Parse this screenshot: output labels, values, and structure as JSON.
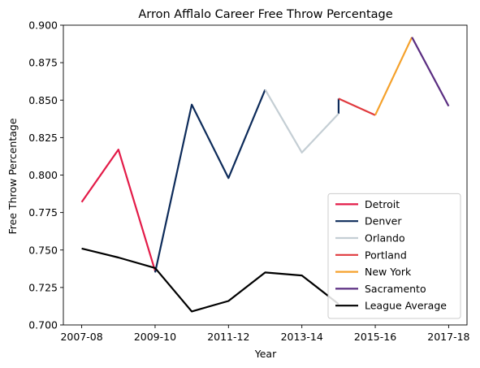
{
  "chart_data": {
    "type": "line",
    "title": "Arron Afflalo Career Free Throw Percentage",
    "xlabel": "Year",
    "ylabel": "Free Throw Percentage",
    "x": [
      "2007-08",
      "2008-09",
      "2009-10",
      "2010-11",
      "2011-12",
      "2012-13",
      "2013-14",
      "2014-15",
      "2015-16",
      "2016-17",
      "2017-18"
    ],
    "x_tick_labels": [
      "2007-08",
      "2009-10",
      "2011-12",
      "2013-14",
      "2015-16",
      "2017-18"
    ],
    "x_tick_indices": [
      0,
      2,
      4,
      6,
      8,
      10
    ],
    "ylim": [
      0.7,
      0.9
    ],
    "y_ticks": [
      0.7,
      0.725,
      0.75,
      0.775,
      0.8,
      0.825,
      0.85,
      0.875,
      0.9
    ],
    "y_tick_labels": [
      "0.700",
      "0.725",
      "0.750",
      "0.775",
      "0.800",
      "0.825",
      "0.850",
      "0.875",
      "0.900"
    ],
    "legend_position": "lower-right",
    "series": [
      {
        "name": "Detroit",
        "color": "#e31b48",
        "points": [
          [
            0,
            0.782
          ],
          [
            1,
            0.817
          ],
          [
            2,
            0.736
          ]
        ]
      },
      {
        "name": "Denver",
        "color": "#0d2b5a",
        "points": [
          [
            2,
            0.735
          ],
          [
            3,
            0.847
          ],
          [
            4,
            0.798
          ],
          [
            5,
            0.857
          ]
        ],
        "extra_segments": [
          [
            [
              7,
              0.841
            ],
            [
              7,
              0.851
            ]
          ]
        ]
      },
      {
        "name": "Orlando",
        "color": "#c4ced4",
        "points": [
          [
            5,
            0.857
          ],
          [
            6,
            0.815
          ],
          [
            7,
            0.841
          ]
        ]
      },
      {
        "name": "Portland",
        "color": "#e03a3e",
        "points": [
          [
            7,
            0.851
          ],
          [
            8,
            0.84
          ]
        ]
      },
      {
        "name": "New York",
        "color": "#f5a12b",
        "points": [
          [
            8,
            0.84
          ],
          [
            9,
            0.892
          ]
        ]
      },
      {
        "name": "Sacramento",
        "color": "#5a2d81",
        "points": [
          [
            9,
            0.892
          ],
          [
            10,
            0.846
          ]
        ]
      },
      {
        "name": "League Average",
        "color": "#000000",
        "points": [
          [
            0,
            0.751
          ],
          [
            1,
            0.745
          ],
          [
            2,
            0.738
          ],
          [
            3,
            0.709
          ],
          [
            4,
            0.716
          ],
          [
            5,
            0.735
          ],
          [
            6,
            0.733
          ],
          [
            7,
            0.714
          ]
        ]
      }
    ]
  }
}
